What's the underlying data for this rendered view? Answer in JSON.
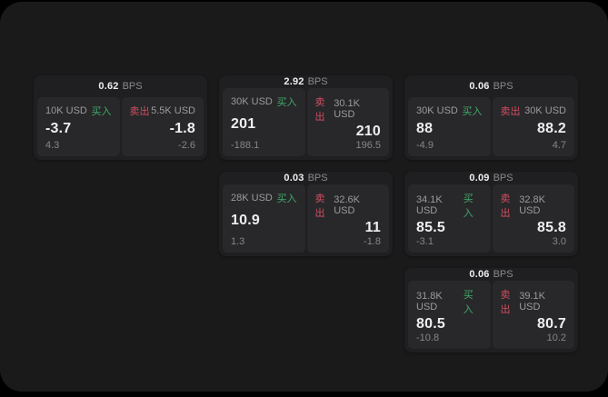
{
  "colors": {
    "surface": "#1a1a1b",
    "card_bg": "#1f1f21",
    "panel_bg": "#28282a",
    "text_primary": "#eeeeef",
    "text_label": "#9b9b9e",
    "text_dim": "#86868a",
    "text_muted": "#8b8b8e",
    "buy_green": "#3fa96a",
    "sell_red": "#d14e5f"
  },
  "labels": {
    "bps_unit": "BPS",
    "buy": "买入",
    "sell": "卖出"
  },
  "cards": [
    {
      "bps": "0.62",
      "buy": {
        "notional": "10K USD",
        "price": "-3.7",
        "delta": "4.3"
      },
      "sell": {
        "notional": "5.5K USD",
        "price": "-1.8",
        "delta": "-2.6"
      }
    },
    {
      "bps": "2.92",
      "buy": {
        "notional": "30K USD",
        "price": "201",
        "delta": "-188.1"
      },
      "sell": {
        "notional": "30.1K USD",
        "price": "210",
        "delta": "196.5"
      }
    },
    {
      "bps": "0.06",
      "buy": {
        "notional": "30K USD",
        "price": "88",
        "delta": "-4.9"
      },
      "sell": {
        "notional": "30K USD",
        "price": "88.2",
        "delta": "4.7"
      }
    },
    {
      "bps": "0.03",
      "buy": {
        "notional": "28K USD",
        "price": "10.9",
        "delta": "1.3"
      },
      "sell": {
        "notional": "32.6K USD",
        "price": "11",
        "delta": "-1.8"
      }
    },
    {
      "bps": "0.09",
      "buy": {
        "notional": "34.1K USD",
        "price": "85.5",
        "delta": "-3.1"
      },
      "sell": {
        "notional": "32.8K USD",
        "price": "85.8",
        "delta": "3.0"
      }
    },
    {
      "bps": "0.06",
      "buy": {
        "notional": "31.8K USD",
        "price": "80.5",
        "delta": "-10.8"
      },
      "sell": {
        "notional": "39.1K USD",
        "price": "80.7",
        "delta": "10.2"
      }
    }
  ]
}
